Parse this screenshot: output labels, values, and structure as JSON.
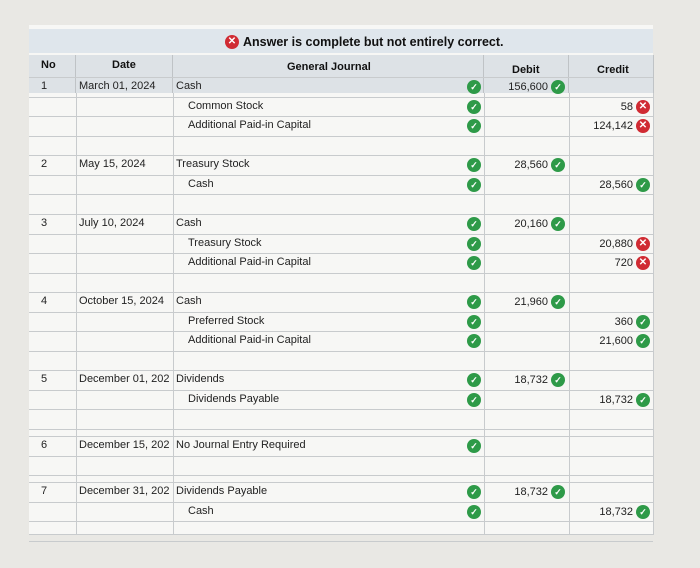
{
  "banner": {
    "text": "Answer is complete but not entirely correct."
  },
  "headers": {
    "no": "No",
    "date": "Date",
    "journal": "General Journal",
    "debit": "Debit",
    "credit": "Credit"
  },
  "entries": [
    {
      "no": "1",
      "date": "March 01, 2024",
      "lines": [
        {
          "account": "Cash",
          "debit": "156,600",
          "debit_status": "correct"
        },
        {
          "account": "Common Stock",
          "credit": "58",
          "credit_status": "incorrect"
        },
        {
          "account": "Additional Paid-in Capital",
          "credit": "124,142",
          "credit_status": "incorrect"
        }
      ]
    },
    {
      "no": "2",
      "date": "May 15, 2024",
      "lines": [
        {
          "account": "Treasury Stock",
          "debit": "28,560",
          "debit_status": "correct"
        },
        {
          "account": "Cash",
          "credit": "28,560",
          "credit_status": "correct"
        }
      ]
    },
    {
      "no": "3",
      "date": "July 10, 2024",
      "lines": [
        {
          "account": "Cash",
          "debit": "20,160",
          "debit_status": "correct"
        },
        {
          "account": "Treasury Stock",
          "credit": "20,880",
          "credit_status": "incorrect"
        },
        {
          "account": "Additional Paid-in Capital",
          "credit": "720",
          "credit_status": "incorrect"
        }
      ]
    },
    {
      "no": "4",
      "date": "October 15, 2024",
      "lines": [
        {
          "account": "Cash",
          "debit": "21,960",
          "debit_status": "correct"
        },
        {
          "account": "Preferred Stock",
          "credit": "360",
          "credit_status": "correct"
        },
        {
          "account": "Additional Paid-in Capital",
          "credit": "21,600",
          "credit_status": "correct"
        }
      ]
    },
    {
      "no": "5",
      "date": "December 01, 202",
      "lines": [
        {
          "account": "Dividends",
          "debit": "18,732",
          "debit_status": "correct"
        },
        {
          "account": "Dividends Payable",
          "credit": "18,732",
          "credit_status": "correct"
        }
      ]
    },
    {
      "no": "6",
      "date": "December 15, 202",
      "lines": [
        {
          "account": "No Journal Entry Required"
        }
      ]
    },
    {
      "no": "7",
      "date": "December 31, 202",
      "lines": [
        {
          "account": "Dividends Payable",
          "debit": "18,732",
          "debit_status": "correct"
        },
        {
          "account": "Cash",
          "credit": "18,732",
          "credit_status": "correct"
        }
      ]
    }
  ],
  "colors": {
    "correct": "#2e9a48",
    "incorrect": "#d02b33",
    "header_bg": "#dde2e6",
    "banner_bg": "#dfe6ec"
  }
}
